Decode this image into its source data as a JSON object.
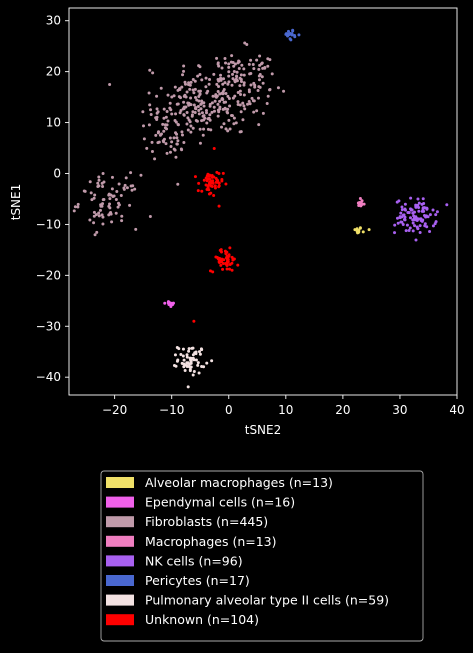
{
  "chart_data": {
    "type": "scatter",
    "title": "",
    "xlabel": "tSNE2",
    "ylabel": "tSNE1",
    "xlim": [
      -28,
      40
    ],
    "ylim": [
      -43.5,
      32.5
    ],
    "xticks": [
      -20,
      -10,
      0,
      10,
      20,
      30,
      40
    ],
    "yticks": [
      -40,
      -30,
      -20,
      -10,
      0,
      10,
      20,
      30
    ],
    "grid": false,
    "legend_position": "bottom",
    "series": [
      {
        "name": "Alveolar macrophages (n=13)",
        "color": "#f0e068",
        "n": 13,
        "clusters": [
          {
            "cx": 22.6,
            "cy": -11.2,
            "sx": 0.35,
            "sy": 0.35,
            "n": 12
          },
          {
            "cx": 24.6,
            "cy": -11.0,
            "sx": 0.05,
            "sy": 0.05,
            "n": 1
          }
        ]
      },
      {
        "name": "Ependymal cells (n=16)",
        "color": "#f060ea",
        "n": 16,
        "clusters": [
          {
            "cx": -10.3,
            "cy": -25.6,
            "sx": 0.5,
            "sy": 0.3,
            "n": 16
          }
        ]
      },
      {
        "name": "Fibroblasts (n=445)",
        "color": "#c09aaa",
        "n": 445,
        "clusters": [
          {
            "cx": -1.5,
            "cy": 15.5,
            "sx": 4.8,
            "sy": 4.2,
            "n": 200
          },
          {
            "cx": -7.0,
            "cy": 12.0,
            "sx": 3.2,
            "sy": 3.2,
            "n": 80
          },
          {
            "cx": -11.0,
            "cy": 8.0,
            "sx": 1.8,
            "sy": 2.6,
            "n": 45
          },
          {
            "cx": 3.5,
            "cy": 19.0,
            "sx": 2.8,
            "sy": 2.5,
            "n": 40
          },
          {
            "cx": -21.0,
            "cy": -5.5,
            "sx": 2.6,
            "sy": 2.6,
            "n": 80
          }
        ]
      },
      {
        "name": "Macrophages (n=13)",
        "color": "#f07ec0",
        "n": 13,
        "clusters": [
          {
            "cx": 23.1,
            "cy": -5.9,
            "sx": 0.35,
            "sy": 0.5,
            "n": 13
          }
        ]
      },
      {
        "name": "NK cells (n=96)",
        "color": "#a860f0",
        "n": 96,
        "clusters": [
          {
            "cx": 32.8,
            "cy": -8.4,
            "sx": 1.8,
            "sy": 1.7,
            "n": 96
          }
        ]
      },
      {
        "name": "Pericytes (n=17)",
        "color": "#4a68d0",
        "n": 17,
        "clusters": [
          {
            "cx": 10.8,
            "cy": 27.3,
            "sx": 0.5,
            "sy": 0.55,
            "n": 17
          }
        ]
      },
      {
        "name": "Pulmonary alveolar type II cells (n=59)",
        "color": "#f3e2e2",
        "n": 59,
        "clusters": [
          {
            "cx": -6.5,
            "cy": -36.5,
            "sx": 1.2,
            "sy": 1.4,
            "n": 59
          }
        ]
      },
      {
        "name": "Unknown (n=104)",
        "color": "#ff0000",
        "n": 104,
        "clusters": [
          {
            "cx": -3.2,
            "cy": -2.2,
            "sx": 1.1,
            "sy": 1.4,
            "n": 50
          },
          {
            "cx": -0.7,
            "cy": -17.0,
            "sx": 1.2,
            "sy": 1.1,
            "n": 52
          },
          {
            "cx": -2.5,
            "cy": 5.0,
            "sx": 0.05,
            "sy": 0.05,
            "n": 1
          },
          {
            "cx": -6.0,
            "cy": -29.0,
            "sx": 0.05,
            "sy": 0.05,
            "n": 1
          }
        ]
      }
    ]
  }
}
